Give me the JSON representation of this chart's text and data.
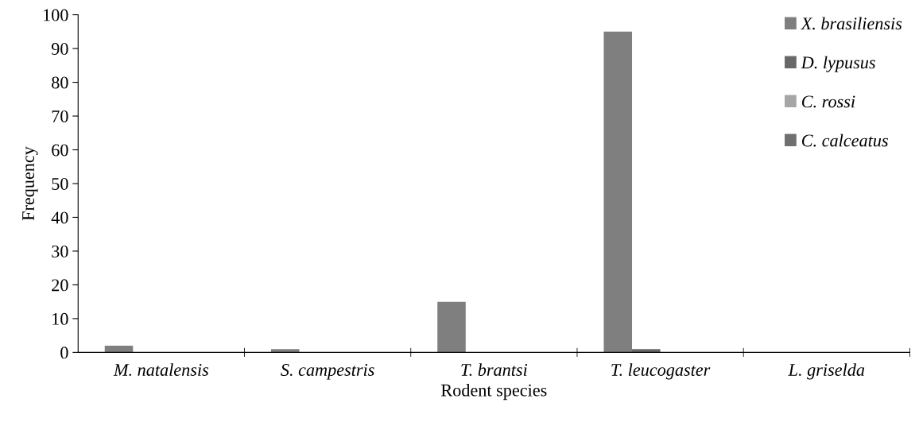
{
  "chart_data": {
    "type": "bar",
    "xlabel": "Rodent species",
    "ylabel": "Frequency",
    "categories": [
      "M. natalensis",
      "S. campestris",
      "T. brantsi",
      "T. leucogaster",
      "L. griselda"
    ],
    "series": [
      {
        "name": "X. brasiliensis",
        "color": "#7f7f7f",
        "values": [
          2,
          1,
          15,
          95,
          0
        ]
      },
      {
        "name": "D. lypusus",
        "color": "#686868",
        "values": [
          0,
          0,
          0,
          1,
          0
        ]
      },
      {
        "name": "C. rossi",
        "color": "#a6a6a6",
        "values": [
          0,
          0,
          0,
          0,
          0
        ]
      },
      {
        "name": "C. calceatus",
        "color": "#6f6f6f",
        "values": [
          0,
          0,
          0,
          0,
          0
        ]
      }
    ],
    "ylim": [
      0,
      100
    ],
    "yticks": [
      0,
      10,
      20,
      30,
      40,
      50,
      60,
      70,
      80,
      90,
      100
    ],
    "grid": false,
    "legend": "top right"
  }
}
